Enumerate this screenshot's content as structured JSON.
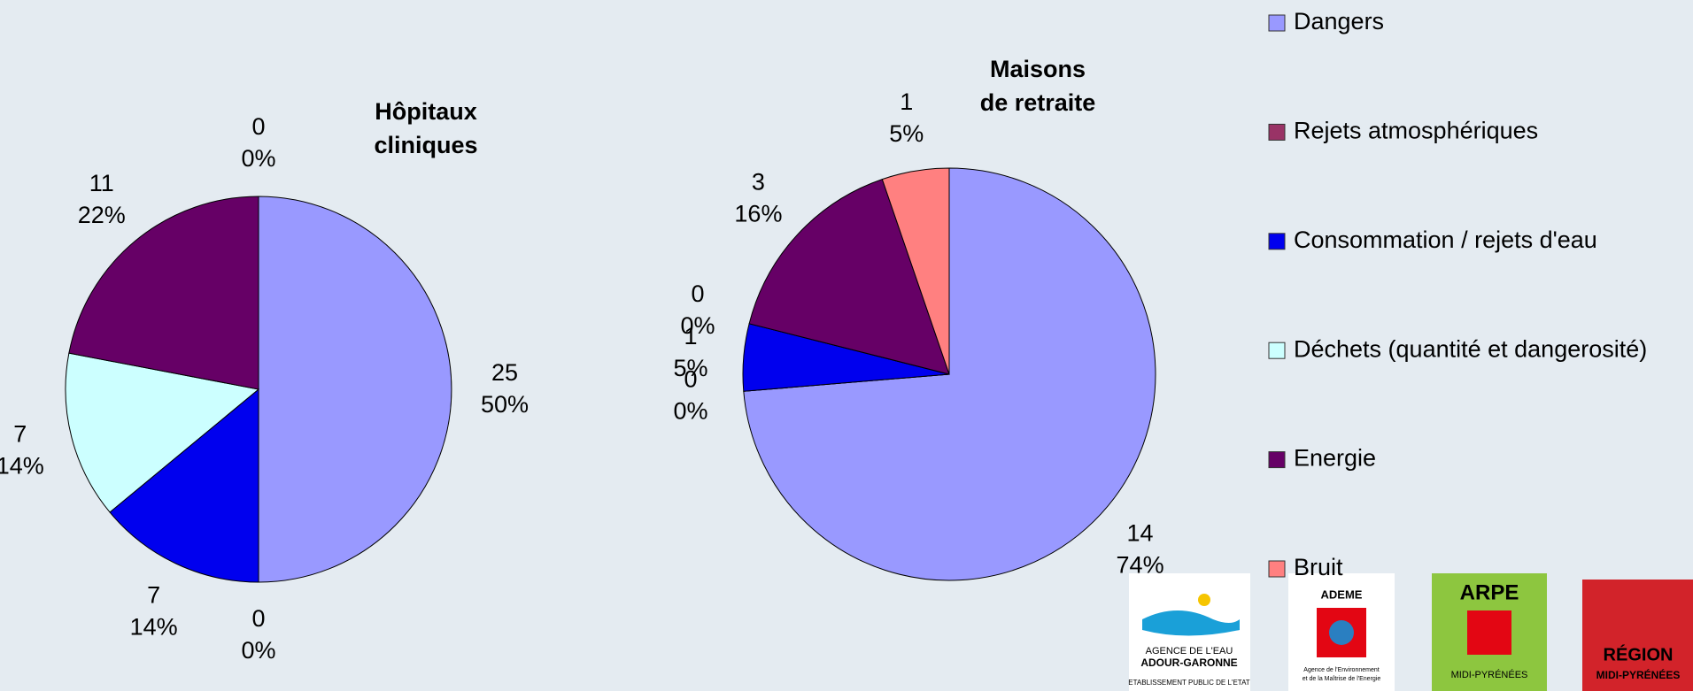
{
  "legend": {
    "categories": [
      "Dangers",
      "Rejets atmosphériques",
      "Consommation / rejets d'eau",
      "Déchets (quantité et dangerosité)",
      "Energie",
      "Bruit"
    ],
    "colors": [
      "#9999ff",
      "#993366",
      "#0000ee",
      "#ccffff",
      "#660066",
      "#ff8080"
    ]
  },
  "chart_data": [
    {
      "type": "pie",
      "title": [
        "Hôpitaux",
        "cliniques"
      ],
      "values": [
        25,
        0,
        7,
        7,
        11,
        0
      ],
      "percent_labels": [
        "50%",
        "0%",
        "14%",
        "14%",
        "22%",
        "0%"
      ]
    },
    {
      "type": "pie",
      "title": [
        "Maisons",
        "de retraite"
      ],
      "values": [
        14,
        0,
        1,
        0,
        3,
        1
      ],
      "percent_labels": [
        "74%",
        "0%",
        "5%",
        "0%",
        "16%",
        "5%"
      ]
    }
  ],
  "logos": [
    {
      "lines": [
        "AGENCE DE L'EAU",
        "ADOUR-GARONNE",
        "ETABLISSEMENT PUBLIC DE L'ETAT"
      ]
    },
    {
      "lines": [
        "ADEME",
        "Agence de l'Environnement",
        "et de la Maîtrise de l'Energie"
      ]
    },
    {
      "lines": [
        "ARPE",
        "MIDI-PYRÉNÉES"
      ]
    },
    {
      "lines": [
        "RÉGION",
        "MIDI-PYRÉNÉES"
      ]
    }
  ]
}
